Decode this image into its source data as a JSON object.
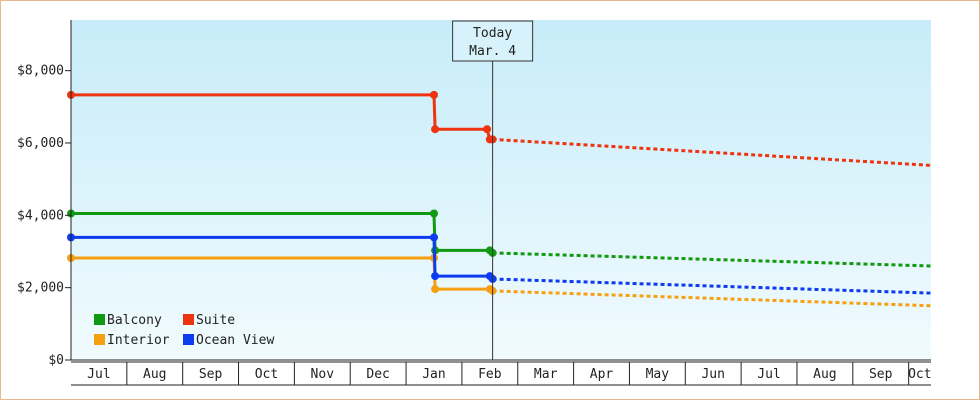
{
  "chart_data": {
    "type": "line",
    "title": "",
    "xlabel": "",
    "ylabel": "",
    "ylim": [
      0,
      9400
    ],
    "y_ticks": [
      {
        "value": 0,
        "label": "$0"
      },
      {
        "value": 2000,
        "label": "$2,000"
      },
      {
        "value": 4000,
        "label": "$4,000"
      },
      {
        "value": 6000,
        "label": "$6,000"
      },
      {
        "value": 8000,
        "label": "$8,000"
      }
    ],
    "x_domain": [
      0,
      15.4
    ],
    "x_ticks": [
      "Jul",
      "Aug",
      "Sep",
      "Oct",
      "Nov",
      "Dec",
      "Jan",
      "Feb",
      "Mar",
      "Apr",
      "May",
      "Jun",
      "Jul",
      "Aug",
      "Sep",
      "Oct"
    ],
    "today": {
      "x": 7.55,
      "line1": "Today",
      "line2": "Mar. 4"
    },
    "grid": false,
    "legend_position": "bottom-left",
    "series": [
      {
        "name": "Balcony",
        "color": "#119911",
        "points": [
          [
            0,
            4050
          ],
          [
            6.5,
            4050
          ],
          [
            6.52,
            3030
          ],
          [
            7.5,
            3030
          ],
          [
            7.55,
            2960
          ]
        ],
        "forecast": [
          [
            7.55,
            2960
          ],
          [
            15.4,
            2600
          ]
        ]
      },
      {
        "name": "Suite",
        "color": "#ee3311",
        "points": [
          [
            0,
            7330
          ],
          [
            6.5,
            7330
          ],
          [
            6.52,
            6380
          ],
          [
            7.45,
            6380
          ],
          [
            7.5,
            6100
          ],
          [
            7.55,
            6100
          ]
        ],
        "forecast": [
          [
            7.55,
            6100
          ],
          [
            15.4,
            5380
          ]
        ]
      },
      {
        "name": "Interior",
        "color": "#f5a011",
        "points": [
          [
            0,
            2820
          ],
          [
            6.5,
            2820
          ],
          [
            6.52,
            1960
          ],
          [
            7.5,
            1960
          ],
          [
            7.55,
            1910
          ]
        ],
        "forecast": [
          [
            7.55,
            1910
          ],
          [
            15.4,
            1500
          ]
        ]
      },
      {
        "name": "Ocean View",
        "color": "#0c3bf0",
        "points": [
          [
            0,
            3390
          ],
          [
            6.5,
            3390
          ],
          [
            6.52,
            2320
          ],
          [
            7.5,
            2320
          ],
          [
            7.55,
            2240
          ]
        ],
        "forecast": [
          [
            7.55,
            2240
          ],
          [
            15.4,
            1850
          ]
        ]
      }
    ]
  }
}
